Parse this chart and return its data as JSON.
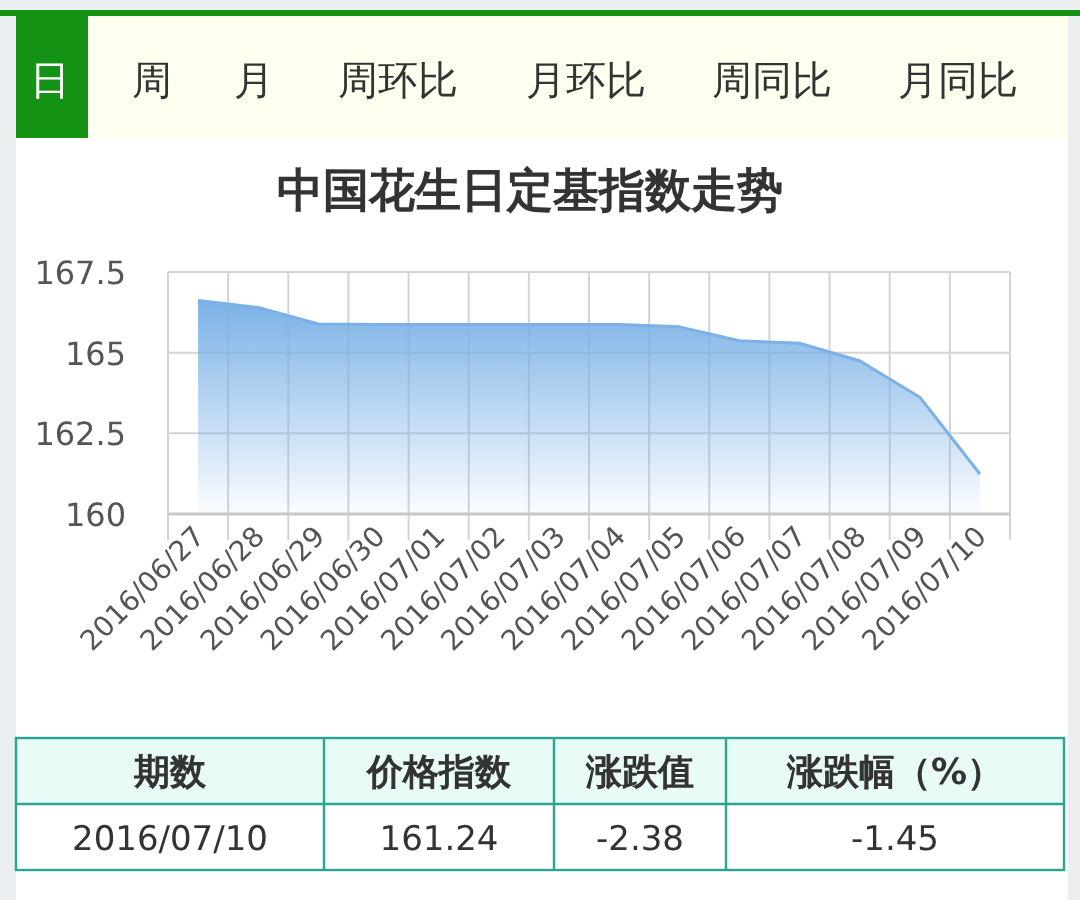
{
  "chart_data": {
    "type": "area",
    "title": "中国花生日定基指数走势",
    "categories": [
      "2016/06/27",
      "2016/06/28",
      "2016/06/29",
      "2016/06/30",
      "2016/07/01",
      "2016/07/02",
      "2016/07/03",
      "2016/07/04",
      "2016/07/05",
      "2016/07/06",
      "2016/07/07",
      "2016/07/08",
      "2016/07/09",
      "2016/07/10"
    ],
    "values": [
      166.62,
      166.4,
      165.89,
      165.87,
      165.87,
      165.87,
      165.87,
      165.87,
      165.8,
      165.37,
      165.29,
      164.75,
      163.62,
      161.24
    ],
    "color": "#7ab1e6",
    "ylim": [
      160,
      167.5
    ],
    "yticks": [
      160,
      {
        "value": 162.5,
        "label": "162.5"
      },
      165,
      {
        "value": 167.5,
        "label": "167.5"
      }
    ],
    "grid": true,
    "marker": "none",
    "annotations": [
      "日",
      "周",
      "月",
      "周环比",
      "月环比",
      "周同比",
      "月同比",
      "期数",
      "价格指数",
      "涨跌值",
      "涨跌幅（%）",
      "2016/07/10",
      "161.24",
      "-2.38",
      "-1.45"
    ]
  }
}
